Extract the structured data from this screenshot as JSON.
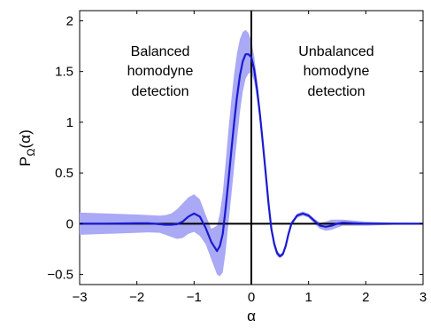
{
  "chart_data": {
    "type": "line",
    "title": "",
    "xlabel": "α",
    "ylabel": "P",
    "ylabel_subscript": "Ω",
    "ylabel_suffix": "(α)",
    "xlim": [
      -3,
      3
    ],
    "ylim": [
      -0.6,
      2.1
    ],
    "x_ticks": [
      -3,
      -2,
      -1,
      0,
      1,
      2,
      3
    ],
    "x_tick_labels": [
      "−3",
      "−2",
      "−1",
      "0",
      "1",
      "2",
      "3"
    ],
    "y_ticks": [
      -0.5,
      0,
      0.5,
      1,
      1.5,
      2
    ],
    "y_tick_labels": [
      "−0.5",
      "0",
      "0.5",
      "1",
      "1.5",
      "2"
    ],
    "grid": false,
    "colors": {
      "line": "#1a1ad0",
      "band": "#a9a9f5",
      "axes": "#000000"
    },
    "annotations": [
      {
        "lines": [
          "Balanced",
          "homodyne",
          "detection"
        ]
      },
      {
        "lines": [
          "Unbalanced",
          "homodyne",
          "detection"
        ]
      }
    ],
    "series": [
      {
        "x": [
          -3.0,
          -2.5,
          -2.0,
          -1.8,
          -1.6,
          -1.5,
          -1.4,
          -1.3,
          -1.2,
          -1.1,
          -1.0,
          -0.9,
          -0.8,
          -0.7,
          -0.6,
          -0.55,
          -0.5,
          -0.45,
          -0.4,
          -0.35,
          -0.3,
          -0.25,
          -0.2,
          -0.15,
          -0.1,
          -0.05,
          0.0,
          0.05,
          0.1,
          0.15,
          0.2,
          0.25,
          0.3,
          0.35,
          0.4,
          0.45,
          0.5,
          0.55,
          0.6,
          0.65,
          0.7,
          0.8,
          0.9,
          1.0,
          1.1,
          1.2,
          1.3,
          1.4,
          1.5,
          1.6,
          1.8,
          2.0,
          2.5,
          3.0
        ],
        "y": [
          0.0,
          0.0,
          0.005,
          0.005,
          -0.005,
          -0.01,
          -0.01,
          -0.005,
          0.02,
          0.07,
          0.1,
          0.07,
          -0.04,
          -0.18,
          -0.27,
          -0.22,
          -0.1,
          0.15,
          0.42,
          0.72,
          1.0,
          1.25,
          1.46,
          1.6,
          1.67,
          1.67,
          1.64,
          1.52,
          1.32,
          1.08,
          0.8,
          0.5,
          0.2,
          -0.05,
          -0.2,
          -0.29,
          -0.32,
          -0.3,
          -0.22,
          -0.1,
          0.0,
          0.08,
          0.1,
          0.08,
          0.03,
          -0.02,
          -0.03,
          -0.02,
          0.0,
          0.01,
          0.005,
          0.0,
          0.0,
          0.0
        ],
        "band_upper": [
          0.11,
          0.1,
          0.09,
          0.085,
          0.08,
          0.085,
          0.1,
          0.14,
          0.2,
          0.26,
          0.29,
          0.24,
          0.09,
          -0.05,
          -0.02,
          0.1,
          0.3,
          0.6,
          0.92,
          1.22,
          1.48,
          1.68,
          1.82,
          1.89,
          1.91,
          1.88,
          1.8,
          1.65,
          1.42,
          1.15,
          0.85,
          0.55,
          0.25,
          0.0,
          -0.16,
          -0.26,
          -0.3,
          -0.28,
          -0.2,
          -0.08,
          0.02,
          0.1,
          0.12,
          0.1,
          0.05,
          0.01,
          0.02,
          0.04,
          0.04,
          0.04,
          0.03,
          0.02,
          0.01,
          0.005
        ],
        "band_lower": [
          -0.11,
          -0.1,
          -0.09,
          -0.085,
          -0.09,
          -0.11,
          -0.13,
          -0.15,
          -0.14,
          -0.1,
          -0.08,
          -0.12,
          -0.2,
          -0.35,
          -0.5,
          -0.52,
          -0.48,
          -0.28,
          0.0,
          0.28,
          0.56,
          0.83,
          1.1,
          1.3,
          1.43,
          1.48,
          1.49,
          1.4,
          1.22,
          1.0,
          0.74,
          0.45,
          0.15,
          -0.1,
          -0.24,
          -0.32,
          -0.34,
          -0.32,
          -0.24,
          -0.12,
          -0.02,
          0.06,
          0.08,
          0.06,
          0.0,
          -0.05,
          -0.07,
          -0.06,
          -0.04,
          -0.02,
          -0.02,
          -0.02,
          -0.01,
          -0.005
        ]
      }
    ]
  }
}
